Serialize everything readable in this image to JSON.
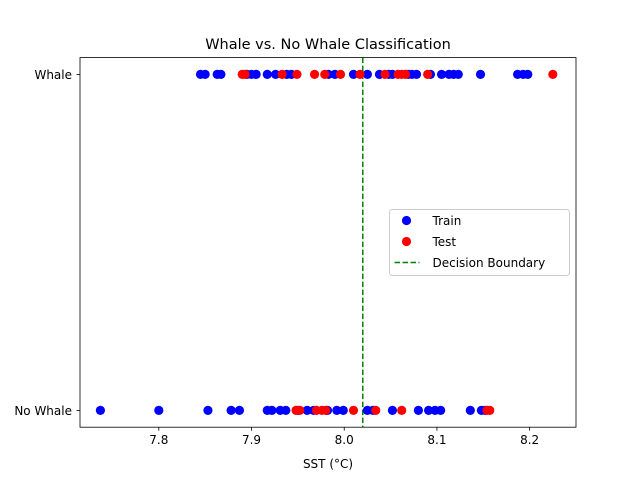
{
  "chart_data": {
    "type": "scatter",
    "title": "Whale vs. No Whale Classification",
    "xlabel": "SST (°C)",
    "ylabel": "",
    "xlim": [
      7.715,
      8.25
    ],
    "ylim": [
      -0.05,
      1.05
    ],
    "x_ticks": [
      7.8,
      7.9,
      8.0,
      8.1,
      8.2
    ],
    "x_tick_labels": [
      "7.8",
      "7.9",
      "8.0",
      "8.1",
      "8.2"
    ],
    "y_ticks": [
      0,
      1
    ],
    "y_tick_labels": [
      "No Whale",
      "Whale"
    ],
    "decision_boundary": 8.02,
    "legend_position": "center-right",
    "series": [
      {
        "name": "Train",
        "color": "#0000ff",
        "points": [
          {
            "x": 7.845,
            "y": 1
          },
          {
            "x": 7.85,
            "y": 1
          },
          {
            "x": 7.863,
            "y": 1
          },
          {
            "x": 7.867,
            "y": 1
          },
          {
            "x": 7.895,
            "y": 1
          },
          {
            "x": 7.9,
            "y": 1
          },
          {
            "x": 7.905,
            "y": 1
          },
          {
            "x": 7.917,
            "y": 1
          },
          {
            "x": 7.926,
            "y": 1
          },
          {
            "x": 7.938,
            "y": 1
          },
          {
            "x": 7.943,
            "y": 1
          },
          {
            "x": 7.983,
            "y": 1
          },
          {
            "x": 7.99,
            "y": 1
          },
          {
            "x": 8.01,
            "y": 1
          },
          {
            "x": 8.025,
            "y": 1
          },
          {
            "x": 8.038,
            "y": 1
          },
          {
            "x": 8.048,
            "y": 1
          },
          {
            "x": 8.052,
            "y": 1
          },
          {
            "x": 8.069,
            "y": 1
          },
          {
            "x": 8.073,
            "y": 1
          },
          {
            "x": 8.078,
            "y": 1
          },
          {
            "x": 8.093,
            "y": 1
          },
          {
            "x": 8.105,
            "y": 1
          },
          {
            "x": 8.113,
            "y": 1
          },
          {
            "x": 8.118,
            "y": 1
          },
          {
            "x": 8.123,
            "y": 1
          },
          {
            "x": 8.147,
            "y": 1
          },
          {
            "x": 8.187,
            "y": 1
          },
          {
            "x": 8.193,
            "y": 1
          },
          {
            "x": 8.198,
            "y": 1
          },
          {
            "x": 7.737,
            "y": 0
          },
          {
            "x": 7.8,
            "y": 0
          },
          {
            "x": 7.853,
            "y": 0
          },
          {
            "x": 7.878,
            "y": 0
          },
          {
            "x": 7.887,
            "y": 0
          },
          {
            "x": 7.917,
            "y": 0
          },
          {
            "x": 7.922,
            "y": 0
          },
          {
            "x": 7.931,
            "y": 0
          },
          {
            "x": 7.937,
            "y": 0
          },
          {
            "x": 7.95,
            "y": 0
          },
          {
            "x": 7.96,
            "y": 0
          },
          {
            "x": 7.967,
            "y": 0
          },
          {
            "x": 7.982,
            "y": 0
          },
          {
            "x": 7.992,
            "y": 0
          },
          {
            "x": 7.999,
            "y": 0
          },
          {
            "x": 8.025,
            "y": 0
          },
          {
            "x": 8.031,
            "y": 0
          },
          {
            "x": 8.052,
            "y": 0
          },
          {
            "x": 8.08,
            "y": 0
          },
          {
            "x": 8.091,
            "y": 0
          },
          {
            "x": 8.098,
            "y": 0
          },
          {
            "x": 8.104,
            "y": 0
          },
          {
            "x": 8.136,
            "y": 0
          },
          {
            "x": 8.148,
            "y": 0
          },
          {
            "x": 8.152,
            "y": 0
          }
        ]
      },
      {
        "name": "Test",
        "color": "#ff0000",
        "points": [
          {
            "x": 7.89,
            "y": 1
          },
          {
            "x": 7.893,
            "y": 1
          },
          {
            "x": 7.933,
            "y": 1
          },
          {
            "x": 7.949,
            "y": 1
          },
          {
            "x": 7.968,
            "y": 1
          },
          {
            "x": 7.979,
            "y": 1
          },
          {
            "x": 7.996,
            "y": 1
          },
          {
            "x": 8.017,
            "y": 1
          },
          {
            "x": 8.044,
            "y": 1
          },
          {
            "x": 8.058,
            "y": 1
          },
          {
            "x": 8.062,
            "y": 1
          },
          {
            "x": 8.066,
            "y": 1
          },
          {
            "x": 8.09,
            "y": 1
          },
          {
            "x": 8.225,
            "y": 1
          },
          {
            "x": 7.948,
            "y": 0
          },
          {
            "x": 7.952,
            "y": 0
          },
          {
            "x": 7.97,
            "y": 0
          },
          {
            "x": 7.976,
            "y": 0
          },
          {
            "x": 7.98,
            "y": 0
          },
          {
            "x": 8.01,
            "y": 0
          },
          {
            "x": 8.034,
            "y": 0
          },
          {
            "x": 8.062,
            "y": 0
          },
          {
            "x": 8.154,
            "y": 0
          },
          {
            "x": 8.157,
            "y": 0
          }
        ]
      }
    ],
    "legend": {
      "entries": [
        {
          "label": "Train",
          "kind": "marker",
          "color": "#0000ff"
        },
        {
          "label": "Test",
          "kind": "marker",
          "color": "#ff0000"
        },
        {
          "label": "Decision Boundary",
          "kind": "dashed-line",
          "color": "#008000"
        }
      ]
    }
  }
}
